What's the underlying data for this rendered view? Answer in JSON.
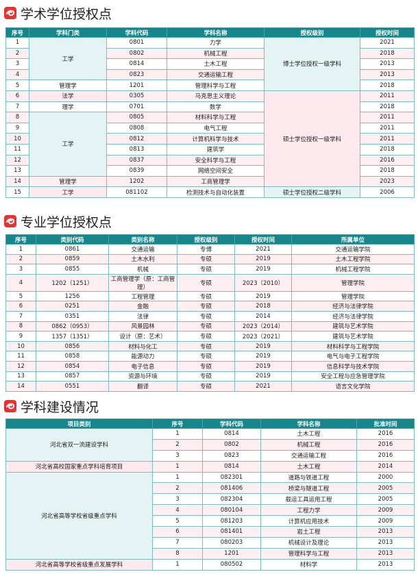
{
  "sections": [
    {
      "title": "学术学位授权点",
      "table": {
        "headers": [
          "序号",
          "学科门类",
          "学科代码",
          "学科名称",
          "授权级别",
          "授权时间"
        ],
        "rows": [
          [
            "1",
            "工学",
            "0801",
            "力学",
            "博士学位授权一级学科",
            "2021"
          ],
          [
            "2",
            null,
            "0802",
            "机械工程",
            null,
            "2018"
          ],
          [
            "3",
            null,
            "0814",
            "土木工程",
            null,
            "2013"
          ],
          [
            "4",
            null,
            "0823",
            "交通运输工程",
            null,
            "2013"
          ],
          [
            "5",
            "管理学",
            "1201",
            "管理科学与工程",
            null,
            "2018"
          ],
          [
            "6",
            "法学",
            "0305",
            "马克思主义理论",
            "硕士学位授权一级学科",
            "2011"
          ],
          [
            "7",
            "理学",
            "0701",
            "数学",
            null,
            "2018"
          ],
          [
            "8",
            "工学",
            "0805",
            "材料科学与工程",
            null,
            "2011"
          ],
          [
            "9",
            null,
            "0808",
            "电气工程",
            null,
            "2011"
          ],
          [
            "10",
            null,
            "0812",
            "计算机科学与技术",
            null,
            "2011"
          ],
          [
            "11",
            null,
            "0813",
            "建筑学",
            null,
            "2018"
          ],
          [
            "12",
            null,
            "0837",
            "安全科学与工程",
            null,
            "2016"
          ],
          [
            "13",
            null,
            "0839",
            "网络空间安全",
            null,
            "2018"
          ],
          [
            "14",
            "管理学",
            "1202",
            "工商管理学",
            null,
            "2023"
          ],
          [
            "15",
            "工学",
            "081102",
            "检测技术与自动化装置",
            "硕士学位授权二级学科",
            "2006"
          ]
        ]
      }
    },
    {
      "title": "专业学位授权点",
      "table": {
        "headers": [
          "序号",
          "类别代码",
          "类别名称",
          "授权级别",
          "授权时间",
          "所属单位"
        ],
        "rows": [
          [
            "1",
            "0861",
            "交通运输",
            "专博",
            "2021",
            "交通运输学院"
          ],
          [
            "2",
            "0859",
            "土木水利",
            "专硕",
            "2019",
            "土木工程学院"
          ],
          [
            "3",
            "0855",
            "机械",
            "专硕",
            "2019",
            "机械工程学院"
          ],
          [
            "4",
            "1202（1251）",
            "工商管理学（原：工商管理）",
            "专硕",
            "2023（2010）",
            "管理学院"
          ],
          [
            "5",
            "1256",
            "工程管理",
            "专硕",
            "2019",
            "管理学院"
          ],
          [
            "6",
            "0251",
            "金融",
            "专硕",
            "2018",
            "经济与法律学院"
          ],
          [
            "7",
            "0351",
            "法律",
            "专硕",
            "2014",
            "经济与法律学院"
          ],
          [
            "8",
            "0862（0953）",
            "风景园林",
            "专硕",
            "2023（2014）",
            "建筑与艺术学院"
          ],
          [
            "9",
            "1357（1351）",
            "设计（原：艺术）",
            "专硕",
            "2023（2021）",
            "建筑与艺术学院"
          ],
          [
            "10",
            "0856",
            "材料与化工",
            "专硕",
            "2019",
            "材料科学与工程学院"
          ],
          [
            "11",
            "0858",
            "能源动力",
            "专硕",
            "2019",
            "电气与电子工程学院"
          ],
          [
            "12",
            "0854",
            "电子信息",
            "专硕",
            "2019",
            "信息科学与技术学院"
          ],
          [
            "13",
            "0857",
            "资源与环境",
            "专硕",
            "2019",
            "安全工程与应急管理学院"
          ],
          [
            "14",
            "0551",
            "翻译",
            "专硕",
            "2021",
            "语言文化学院"
          ]
        ]
      }
    },
    {
      "title": "学科建设情况",
      "table": {
        "headers": [
          "项目类别",
          "序号",
          "学科代码",
          "学科名称",
          "批准时间"
        ],
        "rows": [
          [
            "河北省双一流建设学科",
            "1",
            "0814",
            "土木工程",
            "2016"
          ],
          [
            null,
            "2",
            "0802",
            "机械工程",
            "2016"
          ],
          [
            null,
            "3",
            "0823",
            "交通运输工程",
            "2016"
          ],
          [
            "河北省高校国家重点学科培育项目",
            "1",
            "0814",
            "土木工程",
            "2014"
          ],
          [
            "河北省高等学校省级重点学科",
            "1",
            "082301",
            "道路与铁道工程",
            "2000"
          ],
          [
            null,
            "2",
            "081406",
            "桥梁与隧道工程",
            "2005"
          ],
          [
            null,
            "3",
            "082304",
            "载运工具运用工程",
            "2005"
          ],
          [
            null,
            "4",
            "080104",
            "工程力学",
            "2009"
          ],
          [
            null,
            "5",
            "081203",
            "计算机应用技术",
            "2009"
          ],
          [
            null,
            "6",
            "081401",
            "岩土工程",
            "2013"
          ],
          [
            null,
            "7",
            "080203",
            "机械设计及理论",
            "2013"
          ],
          [
            null,
            "8",
            "1201",
            "管理科学与工程",
            "2013"
          ],
          [
            "河北省高等学校省级重点发展学科",
            "1",
            "080502",
            "材料学",
            "2013"
          ]
        ]
      }
    }
  ]
}
